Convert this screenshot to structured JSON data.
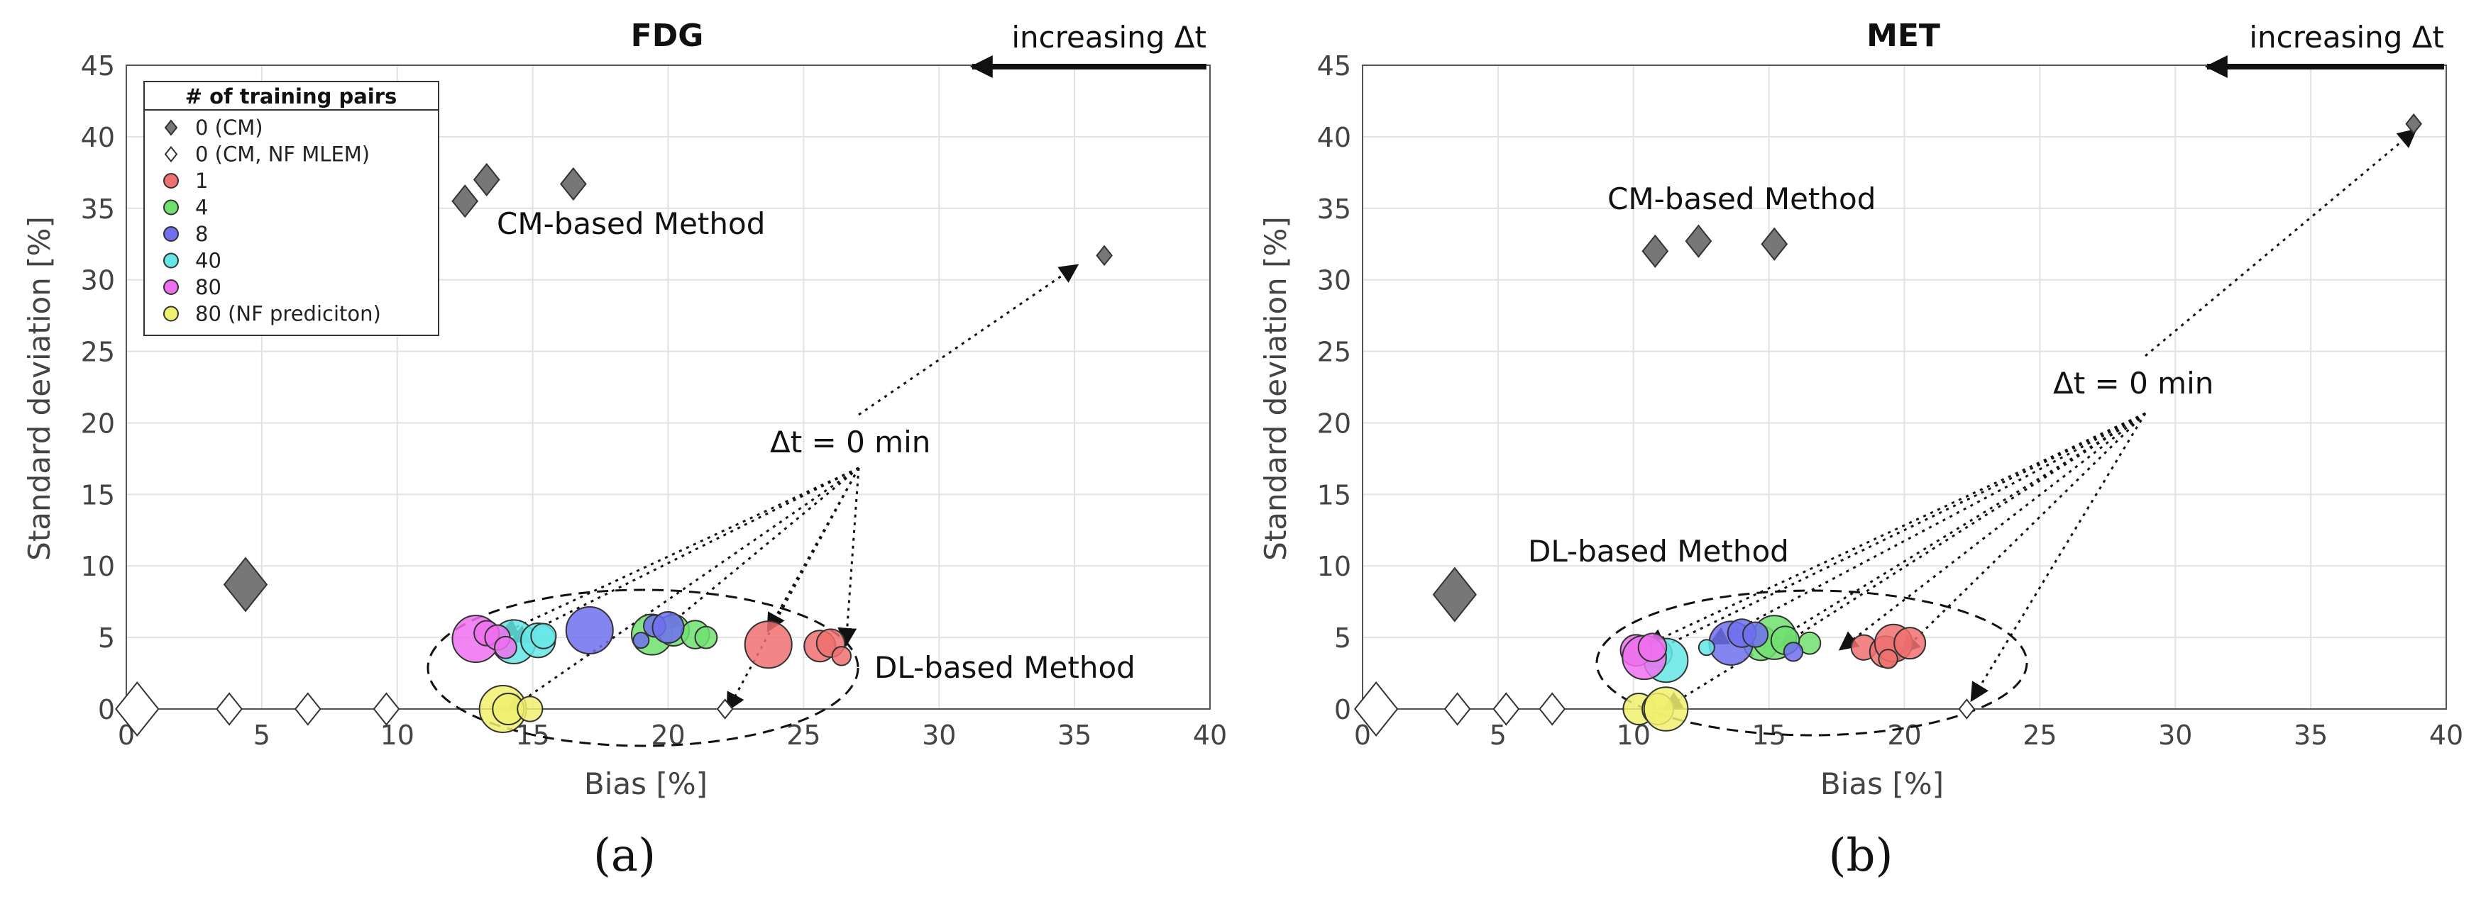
{
  "chart_data": [
    {
      "type": "scatter",
      "panel_label": "(a)",
      "title": "FDG",
      "xlabel": "Bias [%]",
      "ylabel": "Standard deviation [%]",
      "xlim": [
        0,
        40
      ],
      "ylim": [
        0,
        45
      ],
      "xticks": [
        0,
        5,
        10,
        15,
        20,
        25,
        30,
        35,
        40
      ],
      "yticks": [
        0,
        5,
        10,
        15,
        20,
        25,
        30,
        35,
        40,
        45
      ],
      "grid": true,
      "legend": {
        "title": "# of training pairs",
        "placement": "top-left",
        "entries": [
          {
            "key": "cm",
            "label": "0 (CM)",
            "marker": "diamond",
            "color": "#777777"
          },
          {
            "key": "cm_nf",
            "label": "0 (CM, NF MLEM)",
            "marker": "diamond",
            "color": "#ffffff"
          },
          {
            "key": "n1",
            "label": "1",
            "marker": "circle",
            "color": "#f07070"
          },
          {
            "key": "n4",
            "label": "4",
            "marker": "circle",
            "color": "#70e070"
          },
          {
            "key": "n8",
            "label": "8",
            "marker": "circle",
            "color": "#7070f0"
          },
          {
            "key": "n40",
            "label": "40",
            "marker": "circle",
            "color": "#66e6e6"
          },
          {
            "key": "n80",
            "label": "80",
            "marker": "circle",
            "color": "#ee70ee"
          },
          {
            "key": "n80nf",
            "label": "80 (NF prediciton)",
            "marker": "circle",
            "color": "#f0f070"
          }
        ]
      },
      "arrow_label": "increasing Δt",
      "annotations": {
        "cm_method": "CM-based Method",
        "dl_method": "DL-based Method",
        "dt_zero": "Δt = 0 min"
      },
      "series": [
        {
          "name": "0 (CM)",
          "points": [
            [
              12.5,
              35.5
            ],
            [
              13.3,
              37.0
            ],
            [
              16.5,
              36.7
            ],
            [
              36.1,
              31.7
            ],
            [
              4.4,
              8.7
            ]
          ],
          "sizes": [
            1,
            1,
            1,
            0.6,
            1.7
          ]
        },
        {
          "name": "0 (CM, NF MLEM)",
          "points": [
            [
              0.4,
              0.0
            ],
            [
              3.8,
              0.0
            ],
            [
              6.7,
              0.0
            ],
            [
              9.6,
              0.0
            ],
            [
              22.1,
              0.0
            ]
          ],
          "sizes": [
            1.7,
            1,
            1,
            1,
            0.6
          ]
        },
        {
          "name": "1",
          "points": [
            [
              23.7,
              4.5
            ],
            [
              25.6,
              4.4
            ],
            [
              26.0,
              4.6
            ],
            [
              26.4,
              3.7
            ]
          ],
          "sizes": [
            1.5,
            1.0,
            0.9,
            0.6
          ]
        },
        {
          "name": "4",
          "points": [
            [
              19.4,
              5.2
            ],
            [
              20.2,
              5.5
            ],
            [
              21.0,
              5.2
            ],
            [
              21.4,
              5.0
            ]
          ],
          "sizes": [
            1.3,
            1.0,
            0.9,
            0.7
          ]
        },
        {
          "name": "8",
          "points": [
            [
              17.1,
              5.5
            ],
            [
              19.0,
              4.8
            ],
            [
              19.5,
              5.8
            ],
            [
              20.0,
              5.7
            ]
          ],
          "sizes": [
            1.5,
            0.5,
            0.7,
            1.0
          ]
        },
        {
          "name": "40",
          "points": [
            [
              14.3,
              4.7
            ],
            [
              15.2,
              4.8
            ],
            [
              15.4,
              5.1
            ]
          ],
          "sizes": [
            1.4,
            1.1,
            0.8
          ]
        },
        {
          "name": "80",
          "points": [
            [
              12.9,
              4.9
            ],
            [
              13.3,
              5.3
            ],
            [
              13.7,
              5.0
            ],
            [
              14.0,
              4.3
            ]
          ],
          "sizes": [
            1.5,
            0.8,
            0.8,
            0.7
          ]
        },
        {
          "name": "80 (NF prediciton)",
          "points": [
            [
              13.9,
              0.0
            ],
            [
              14.1,
              0.0
            ],
            [
              14.9,
              0.0
            ]
          ],
          "sizes": [
            1.5,
            1.0,
            0.8
          ]
        }
      ]
    },
    {
      "type": "scatter",
      "panel_label": "(b)",
      "title": "MET",
      "xlabel": "Bias [%]",
      "ylabel": "Standard deviation [%]",
      "xlim": [
        0,
        40
      ],
      "ylim": [
        0,
        45
      ],
      "xticks": [
        0,
        5,
        10,
        15,
        20,
        25,
        30,
        35,
        40
      ],
      "yticks": [
        0,
        5,
        10,
        15,
        20,
        25,
        30,
        35,
        40,
        45
      ],
      "grid": true,
      "arrow_label": "increasing Δt",
      "annotations": {
        "cm_method": "CM-based Method",
        "dl_method": "DL-based Method",
        "dt_zero": "Δt = 0 min"
      },
      "series": [
        {
          "name": "0 (CM)",
          "points": [
            [
              10.8,
              32.0
            ],
            [
              12.4,
              32.7
            ],
            [
              15.2,
              32.5
            ],
            [
              38.8,
              40.9
            ],
            [
              3.4,
              8.0
            ]
          ],
          "sizes": [
            1,
            1,
            1,
            0.6,
            1.7
          ]
        },
        {
          "name": "0 (CM, NF MLEM)",
          "points": [
            [
              0.5,
              0.0
            ],
            [
              3.5,
              0.0
            ],
            [
              5.3,
              0.0
            ],
            [
              7.0,
              0.0
            ],
            [
              22.3,
              0.0
            ]
          ],
          "sizes": [
            1.7,
            1,
            1,
            1,
            0.6
          ]
        },
        {
          "name": "1",
          "points": [
            [
              18.5,
              4.3
            ],
            [
              19.3,
              4.0
            ],
            [
              19.6,
              4.6
            ],
            [
              20.2,
              4.6
            ],
            [
              19.4,
              3.5
            ]
          ],
          "sizes": [
            0.8,
            1.0,
            1.2,
            1.0,
            0.6
          ]
        },
        {
          "name": "4",
          "points": [
            [
              14.7,
              4.6
            ],
            [
              15.2,
              5.0
            ],
            [
              16.5,
              4.6
            ],
            [
              15.6,
              4.8
            ]
          ],
          "sizes": [
            1.1,
            1.4,
            0.7,
            0.9
          ]
        },
        {
          "name": "8",
          "points": [
            [
              13.6,
              4.6
            ],
            [
              14.0,
              5.3
            ],
            [
              14.5,
              5.2
            ],
            [
              15.9,
              4.0
            ]
          ],
          "sizes": [
            1.4,
            0.9,
            0.8,
            0.6
          ]
        },
        {
          "name": "40",
          "points": [
            [
              12.7,
              4.3
            ],
            [
              10.9,
              3.9
            ],
            [
              11.2,
              3.4
            ]
          ],
          "sizes": [
            0.5,
            0.9,
            1.4
          ]
        },
        {
          "name": "80",
          "points": [
            [
              10.1,
              4.1
            ],
            [
              10.4,
              3.6
            ],
            [
              10.7,
              4.3
            ]
          ],
          "sizes": [
            1.0,
            1.4,
            0.9
          ]
        },
        {
          "name": "80 (NF prediciton)",
          "points": [
            [
              10.2,
              0.0
            ],
            [
              10.9,
              0.0
            ],
            [
              11.2,
              0.0
            ]
          ],
          "sizes": [
            1.0,
            1.0,
            1.4
          ]
        }
      ]
    }
  ]
}
